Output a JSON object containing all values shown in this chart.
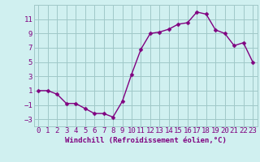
{
  "x": [
    0,
    1,
    2,
    3,
    4,
    5,
    6,
    7,
    8,
    9,
    10,
    11,
    12,
    13,
    14,
    15,
    16,
    17,
    18,
    19,
    20,
    21,
    22,
    23
  ],
  "y": [
    1.0,
    1.0,
    0.5,
    -0.8,
    -0.8,
    -1.5,
    -2.2,
    -2.2,
    -2.7,
    -0.5,
    3.3,
    6.8,
    9.0,
    9.2,
    9.6,
    10.3,
    10.5,
    12.0,
    11.7,
    9.5,
    9.0,
    7.3,
    7.7,
    5.0
  ],
  "xlim": [
    -0.5,
    23.5
  ],
  "ylim": [
    -4,
    13
  ],
  "yticks": [
    -3,
    -1,
    1,
    3,
    5,
    7,
    9,
    11
  ],
  "xticks": [
    0,
    1,
    2,
    3,
    4,
    5,
    6,
    7,
    8,
    9,
    10,
    11,
    12,
    13,
    14,
    15,
    16,
    17,
    18,
    19,
    20,
    21,
    22,
    23
  ],
  "xlabel": "Windchill (Refroidissement éolien,°C)",
  "line_color": "#800080",
  "marker_color": "#800080",
  "bg_color": "#d0f0f0",
  "grid_color": "#a0c8c8",
  "xlabel_fontsize": 6.5,
  "tick_fontsize": 6.5,
  "line_width": 1.0,
  "marker_size": 2.5
}
